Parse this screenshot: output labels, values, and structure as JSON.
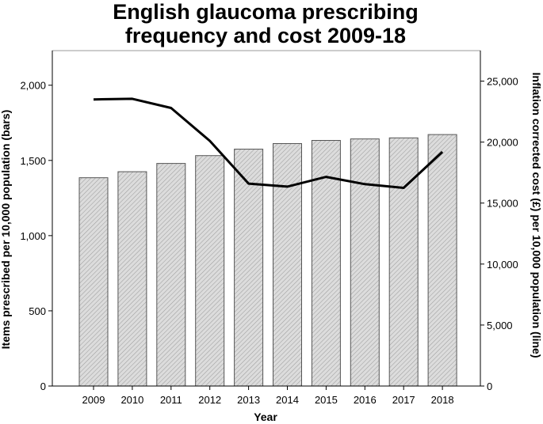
{
  "chart_data": {
    "type": "bar",
    "title": "English glaucoma prescribing frequency and cost 2009-18",
    "title_lines": [
      "English glaucoma prescribing",
      "frequency and cost 2009-18"
    ],
    "xlabel": "Year",
    "ylabel": "Items prescribed per 10,000 population (bars)",
    "y2label": "Inflation corrected cost (£) per 10,000 population (line)",
    "categories": [
      "2009",
      "2010",
      "2011",
      "2012",
      "2013",
      "2014",
      "2015",
      "2016",
      "2017",
      "2018"
    ],
    "ylim": [
      0,
      2230
    ],
    "y2lim": [
      0,
      27500
    ],
    "yticks": [
      0,
      500,
      1000,
      1500,
      2000
    ],
    "ytick_labels": [
      "0",
      "500",
      "1,000",
      "1,500",
      "2,000"
    ],
    "y2ticks": [
      0,
      5000,
      10000,
      15000,
      20000,
      25000
    ],
    "y2tick_labels": [
      "0",
      "5,000",
      "10,000",
      "15,000",
      "20,000",
      "25,000"
    ],
    "grid": false,
    "series": [
      {
        "type": "bar",
        "axis": "left",
        "values": [
          1385,
          1425,
          1480,
          1532,
          1575,
          1612,
          1633,
          1643,
          1650,
          1672
        ]
      },
      {
        "type": "line",
        "axis": "right",
        "values": [
          23500,
          23550,
          22800,
          20100,
          16600,
          16350,
          17150,
          16550,
          16250,
          19200
        ]
      }
    ],
    "colors": {
      "bar_fill": "#dcdcdc",
      "bar_hatch": "#9a9a9a",
      "bar_stroke": "#555555",
      "line": "#000000",
      "axis": "#000000",
      "frame": "#9a9a9a"
    }
  }
}
